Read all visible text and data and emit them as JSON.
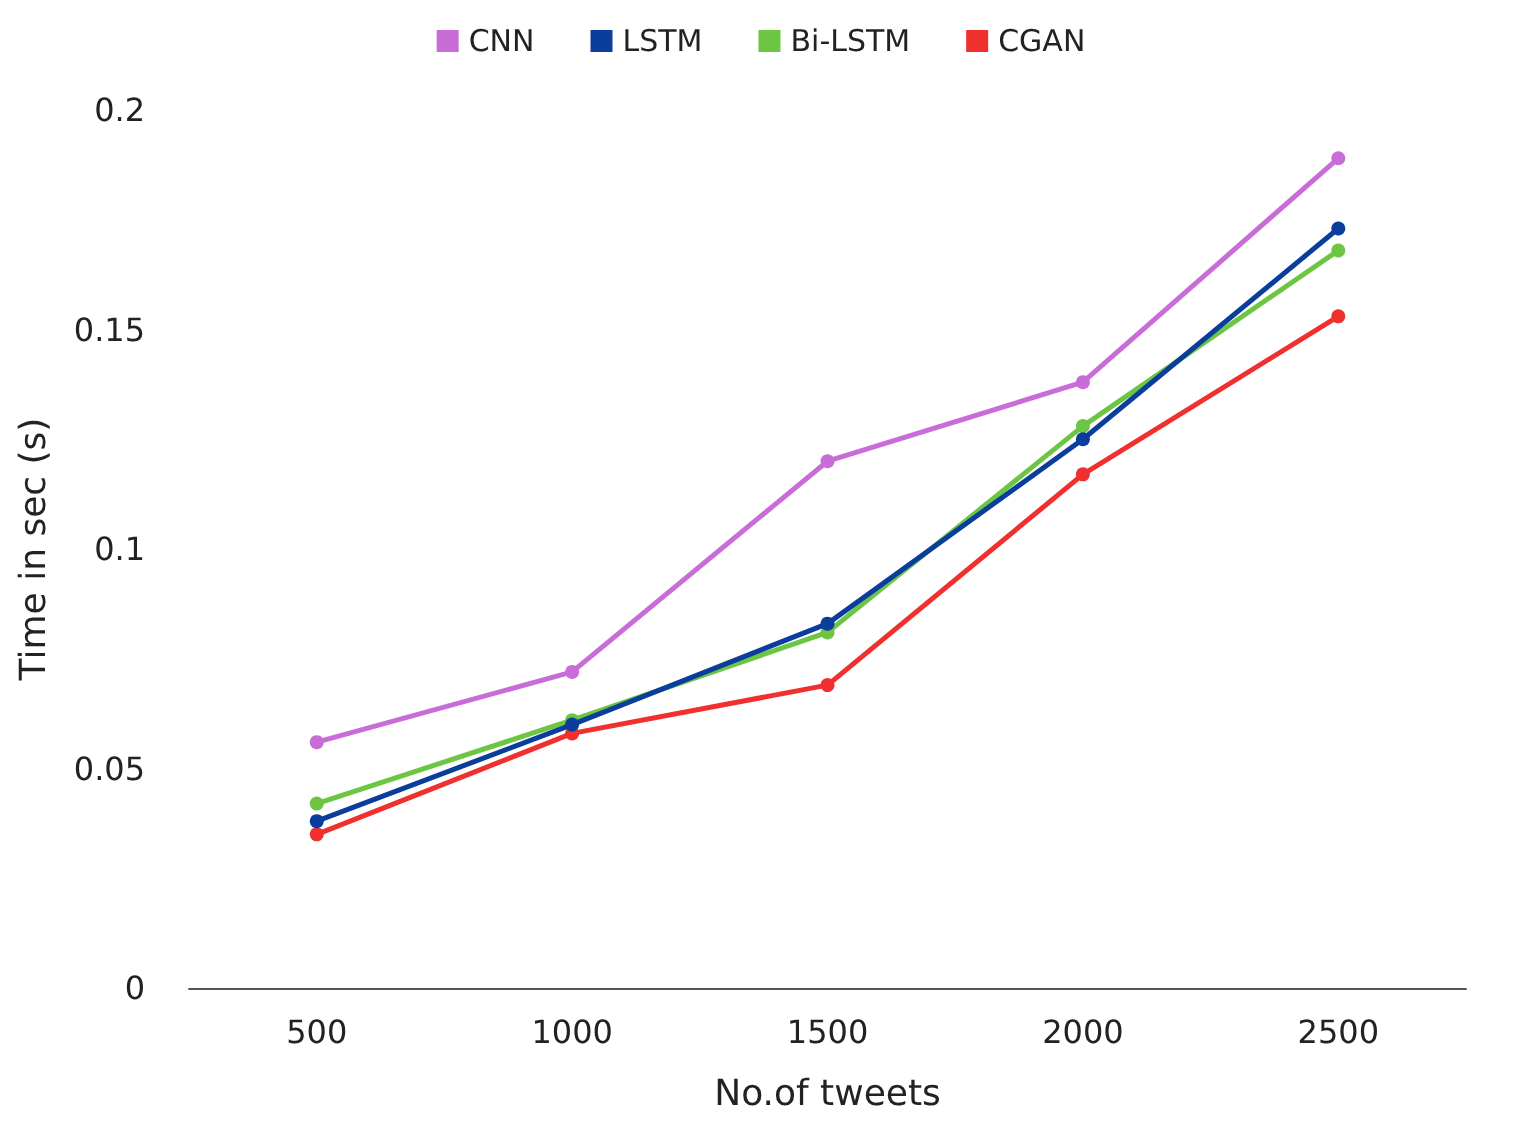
{
  "chart_data": {
    "type": "line",
    "xlabel": "No.of tweets",
    "ylabel": "Time in sec (s)",
    "categories": [
      "500",
      "1000",
      "1500",
      "2000",
      "2500"
    ],
    "series": [
      {
        "name": "CNN",
        "color": "#c86dd7",
        "values": [
          0.056,
          0.072,
          0.12,
          0.138,
          0.189
        ]
      },
      {
        "name": "LSTM",
        "color": "#0a3d9c",
        "values": [
          0.038,
          0.06,
          0.083,
          0.125,
          0.173
        ]
      },
      {
        "name": "Bi-LSTM",
        "color": "#6cc644",
        "values": [
          0.042,
          0.061,
          0.081,
          0.128,
          0.168
        ]
      },
      {
        "name": "CGAN",
        "color": "#f0302f",
        "values": [
          0.035,
          0.058,
          0.069,
          0.117,
          0.153
        ]
      }
    ],
    "ylim": [
      0,
      0.2
    ],
    "yticks": [
      0,
      0.05,
      0.1,
      0.15,
      0.2
    ],
    "grid": false,
    "legend": "top",
    "marker": "circle",
    "line_style": "solid"
  }
}
